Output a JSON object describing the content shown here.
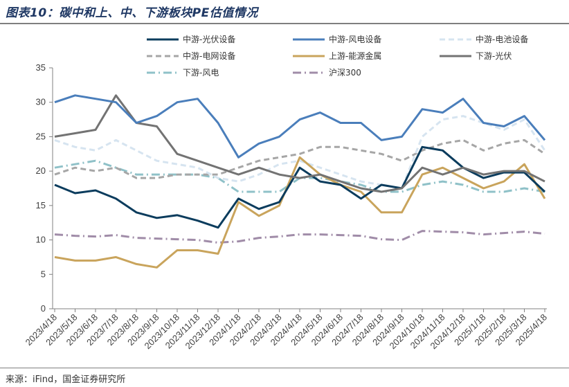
{
  "title": "图表10：碳中和上、中、下游板块PE估值情况",
  "source": "来源：iFind，国金证券研究所",
  "chart_data": {
    "type": "line",
    "ylim": [
      0,
      35
    ],
    "yticks": [
      0,
      5,
      10,
      15,
      20,
      25,
      30,
      35
    ],
    "grid": false,
    "legend_position": "top",
    "x_labels": [
      "2023/4/18",
      "2023/5/18",
      "2023/6/18",
      "2023/7/18",
      "2023/8/18",
      "2023/9/18",
      "2023/10/18",
      "2023/11/18",
      "2023/12/18",
      "2024/1/18",
      "2024/2/18",
      "2024/3/18",
      "2024/4/18",
      "2024/5/18",
      "2024/6/18",
      "2024/7/18",
      "2024/8/18",
      "2024/9/18",
      "2024/10/18",
      "2024/11/18",
      "2024/12/18",
      "2025/1/18",
      "2025/2/18",
      "2025/3/18",
      "2025/4/18"
    ],
    "series": [
      {
        "name": "中游-光伏设备",
        "color": "#0b3c5d",
        "style": "solid",
        "width": 3,
        "values": [
          18.0,
          16.8,
          17.2,
          16.0,
          14.0,
          13.2,
          13.6,
          12.8,
          11.8,
          16.0,
          14.5,
          15.5,
          20.5,
          18.5,
          18.0,
          16.0,
          18.0,
          17.5,
          23.5,
          23.0,
          20.5,
          19.0,
          19.8,
          19.8,
          17.0
        ]
      },
      {
        "name": "中游-风电设备",
        "color": "#4a7ebb",
        "style": "solid",
        "width": 3,
        "values": [
          30.0,
          31.0,
          30.5,
          30.0,
          27.0,
          28.0,
          30.0,
          30.5,
          27.0,
          22.0,
          24.0,
          25.0,
          27.5,
          28.5,
          27.0,
          27.0,
          24.5,
          25.0,
          29.0,
          28.5,
          30.5,
          27.0,
          26.5,
          28.0,
          24.5
        ]
      },
      {
        "name": "中游-电池设备",
        "color": "#d6e4f0",
        "style": "dash",
        "width": 3,
        "values": [
          24.5,
          23.5,
          23.0,
          24.5,
          23.0,
          21.5,
          21.0,
          20.5,
          19.0,
          18.5,
          19.5,
          21.0,
          21.5,
          20.5,
          19.5,
          18.5,
          18.0,
          17.5,
          25.0,
          27.5,
          28.0,
          27.0,
          26.0,
          27.5,
          23.0
        ]
      },
      {
        "name": "中游-电网设备",
        "color": "#a6a6a6",
        "style": "dash",
        "width": 3,
        "values": [
          19.5,
          20.5,
          20.0,
          20.5,
          19.0,
          19.0,
          19.5,
          19.5,
          19.5,
          20.5,
          21.5,
          22.0,
          22.5,
          23.5,
          23.5,
          23.0,
          22.5,
          21.5,
          23.0,
          24.0,
          24.5,
          23.0,
          24.0,
          24.5,
          22.5
        ]
      },
      {
        "name": "上游-能源金属",
        "color": "#c9a45c",
        "style": "solid",
        "width": 3,
        "values": [
          7.5,
          7.0,
          7.0,
          7.5,
          6.5,
          6.0,
          8.5,
          8.5,
          8.0,
          15.5,
          13.5,
          15.0,
          22.0,
          19.5,
          18.0,
          17.0,
          14.0,
          14.0,
          19.5,
          20.5,
          19.0,
          17.5,
          18.5,
          21.0,
          16.0
        ]
      },
      {
        "name": "下游-光伏",
        "color": "#737373",
        "style": "solid",
        "width": 3,
        "values": [
          25.0,
          25.5,
          26.0,
          31.0,
          27.0,
          26.5,
          22.5,
          21.5,
          20.5,
          19.5,
          20.5,
          19.5,
          19.0,
          19.5,
          18.5,
          17.5,
          17.0,
          17.5,
          20.5,
          19.5,
          20.5,
          19.5,
          20.0,
          20.0,
          18.5
        ]
      },
      {
        "name": "下游-风电",
        "color": "#8fc1c8",
        "style": "dashdot",
        "width": 3,
        "values": [
          20.5,
          21.0,
          21.5,
          20.5,
          19.5,
          19.5,
          19.5,
          19.5,
          19.0,
          17.0,
          17.0,
          17.0,
          19.0,
          19.0,
          18.5,
          18.0,
          17.0,
          17.0,
          18.0,
          18.5,
          18.0,
          17.0,
          17.0,
          17.5,
          17.0
        ]
      },
      {
        "name": "沪深300",
        "color": "#a08ca8",
        "style": "dashdot",
        "width": 3,
        "values": [
          10.8,
          10.6,
          10.5,
          10.7,
          10.3,
          10.2,
          10.1,
          10.0,
          9.6,
          9.8,
          10.3,
          10.5,
          10.8,
          10.8,
          10.7,
          10.6,
          10.1,
          10.0,
          11.3,
          11.2,
          11.1,
          10.8,
          11.0,
          11.2,
          10.9
        ]
      }
    ]
  }
}
